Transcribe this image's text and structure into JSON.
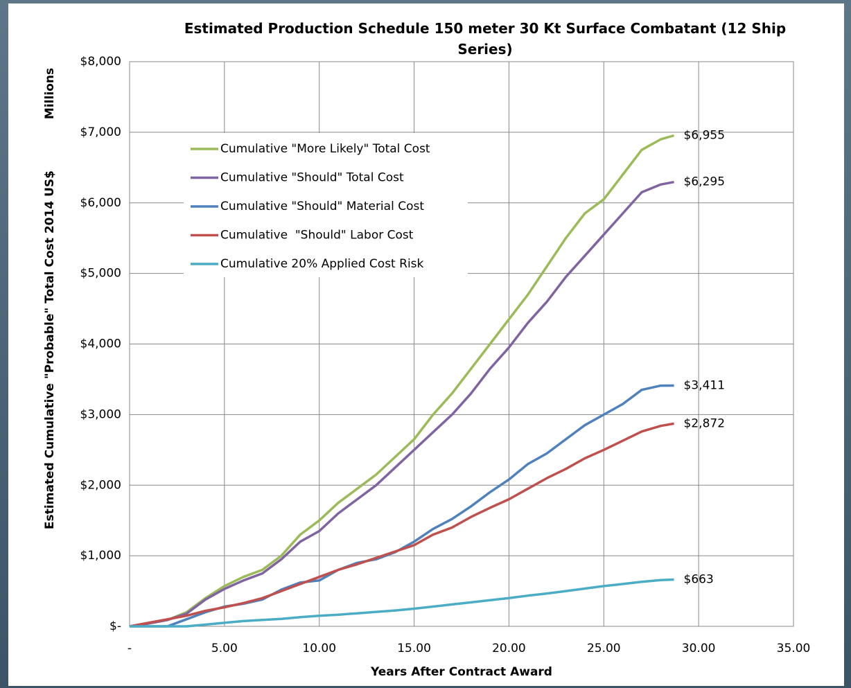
{
  "chart_data": {
    "type": "line",
    "title": "Estimated Production Schedule 150 meter 30 Kt Surface Combatant (12 Ship Series)",
    "x_label": "Years After Contract Award",
    "y_label": "Estimated Cumulative \"Probable\" Total Cost 2014 US$",
    "y_unit_label": "Millions",
    "x": [
      0,
      1,
      2,
      3,
      4,
      5,
      6,
      7,
      8,
      9,
      10,
      11,
      12,
      13,
      14,
      15,
      16,
      17,
      18,
      19,
      20,
      21,
      22,
      23,
      24,
      25,
      26,
      27,
      28,
      28.7
    ],
    "series": [
      {
        "name": "Cumulative \"More Likely\" Total Cost",
        "color": "#9bbb59",
        "values": [
          0,
          40,
          90,
          200,
          400,
          570,
          700,
          800,
          1000,
          1300,
          1500,
          1750,
          1950,
          2150,
          2400,
          2650,
          3000,
          3300,
          3650,
          4000,
          4350,
          4700,
          5100,
          5500,
          5850,
          6050,
          6400,
          6750,
          6900,
          6955
        ],
        "value_labels": [
          null,
          null,
          null,
          null,
          null,
          null,
          null,
          null,
          null,
          null,
          null,
          null,
          null,
          null,
          null,
          null,
          null,
          null,
          null,
          null,
          null,
          null,
          null,
          null,
          null,
          null,
          null,
          null,
          null,
          "$6,955"
        ]
      },
      {
        "name": "Cumulative \"Should\" Total Cost",
        "color": "#8064a2",
        "values": [
          0,
          40,
          90,
          180,
          380,
          530,
          650,
          750,
          950,
          1200,
          1350,
          1600,
          1800,
          2000,
          2250,
          2500,
          2750,
          3000,
          3300,
          3650,
          3950,
          4300,
          4600,
          4950,
          5250,
          5550,
          5850,
          6150,
          6260,
          6295
        ],
        "value_labels": [
          null,
          null,
          null,
          null,
          null,
          null,
          null,
          null,
          null,
          null,
          null,
          null,
          null,
          null,
          null,
          null,
          null,
          null,
          null,
          null,
          null,
          null,
          null,
          null,
          null,
          null,
          null,
          null,
          null,
          "$6,295"
        ]
      },
      {
        "name": "Cumulative \"Should\" Material Cost",
        "color": "#4f81bd",
        "values": [
          0,
          0,
          0,
          100,
          200,
          280,
          320,
          380,
          520,
          620,
          650,
          800,
          900,
          950,
          1050,
          1200,
          1380,
          1520,
          1700,
          1900,
          2080,
          2300,
          2450,
          2650,
          2850,
          3000,
          3150,
          3350,
          3410,
          3411
        ],
        "value_labels": [
          null,
          null,
          null,
          null,
          null,
          null,
          null,
          null,
          null,
          null,
          null,
          null,
          null,
          null,
          null,
          null,
          null,
          null,
          null,
          null,
          null,
          null,
          null,
          null,
          null,
          null,
          null,
          null,
          null,
          "$3,411"
        ]
      },
      {
        "name": "Cumulative  \"Should\" Labor Cost",
        "color": "#c0504d",
        "values": [
          0,
          50,
          100,
          150,
          220,
          270,
          330,
          400,
          500,
          600,
          700,
          800,
          880,
          970,
          1060,
          1150,
          1300,
          1400,
          1550,
          1680,
          1800,
          1950,
          2100,
          2230,
          2380,
          2500,
          2630,
          2760,
          2840,
          2872
        ],
        "value_labels": [
          null,
          null,
          null,
          null,
          null,
          null,
          null,
          null,
          null,
          null,
          null,
          null,
          null,
          null,
          null,
          null,
          null,
          null,
          null,
          null,
          null,
          null,
          null,
          null,
          null,
          null,
          null,
          null,
          null,
          "$2,872"
        ]
      },
      {
        "name": "Cumulative 20% Applied Cost Risk",
        "color": "#4bacc6",
        "values": [
          0,
          0,
          0,
          0,
          25,
          50,
          75,
          90,
          105,
          130,
          150,
          165,
          185,
          205,
          225,
          250,
          280,
          310,
          340,
          370,
          400,
          435,
          465,
          500,
          535,
          570,
          600,
          630,
          655,
          663
        ],
        "value_labels": [
          null,
          null,
          null,
          null,
          null,
          null,
          null,
          null,
          null,
          null,
          null,
          null,
          null,
          null,
          null,
          null,
          null,
          null,
          null,
          null,
          null,
          null,
          null,
          null,
          null,
          null,
          null,
          null,
          null,
          "$663"
        ]
      }
    ],
    "xlim": [
      0,
      35
    ],
    "xticks": [
      {
        "value": 0,
        "label": "-"
      },
      {
        "value": 5,
        "label": "5.00"
      },
      {
        "value": 10,
        "label": "10.00"
      },
      {
        "value": 15,
        "label": "15.00"
      },
      {
        "value": 20,
        "label": "20.00"
      },
      {
        "value": 25,
        "label": "25.00"
      },
      {
        "value": 30,
        "label": "30.00"
      },
      {
        "value": 35,
        "label": "35.00"
      }
    ],
    "ylim": [
      0,
      8000
    ],
    "yticks": [
      {
        "value": 0,
        "label": "$-"
      },
      {
        "value": 1000,
        "label": "$1,000"
      },
      {
        "value": 2000,
        "label": "$2,000"
      },
      {
        "value": 3000,
        "label": "$3,000"
      },
      {
        "value": 4000,
        "label": "$4,000"
      },
      {
        "value": 5000,
        "label": "$5,000"
      },
      {
        "value": 6000,
        "label": "$6,000"
      },
      {
        "value": 7000,
        "label": "$7,000"
      },
      {
        "value": 8000,
        "label": "$8,000"
      }
    ],
    "grid": true,
    "legend": "upper left"
  }
}
